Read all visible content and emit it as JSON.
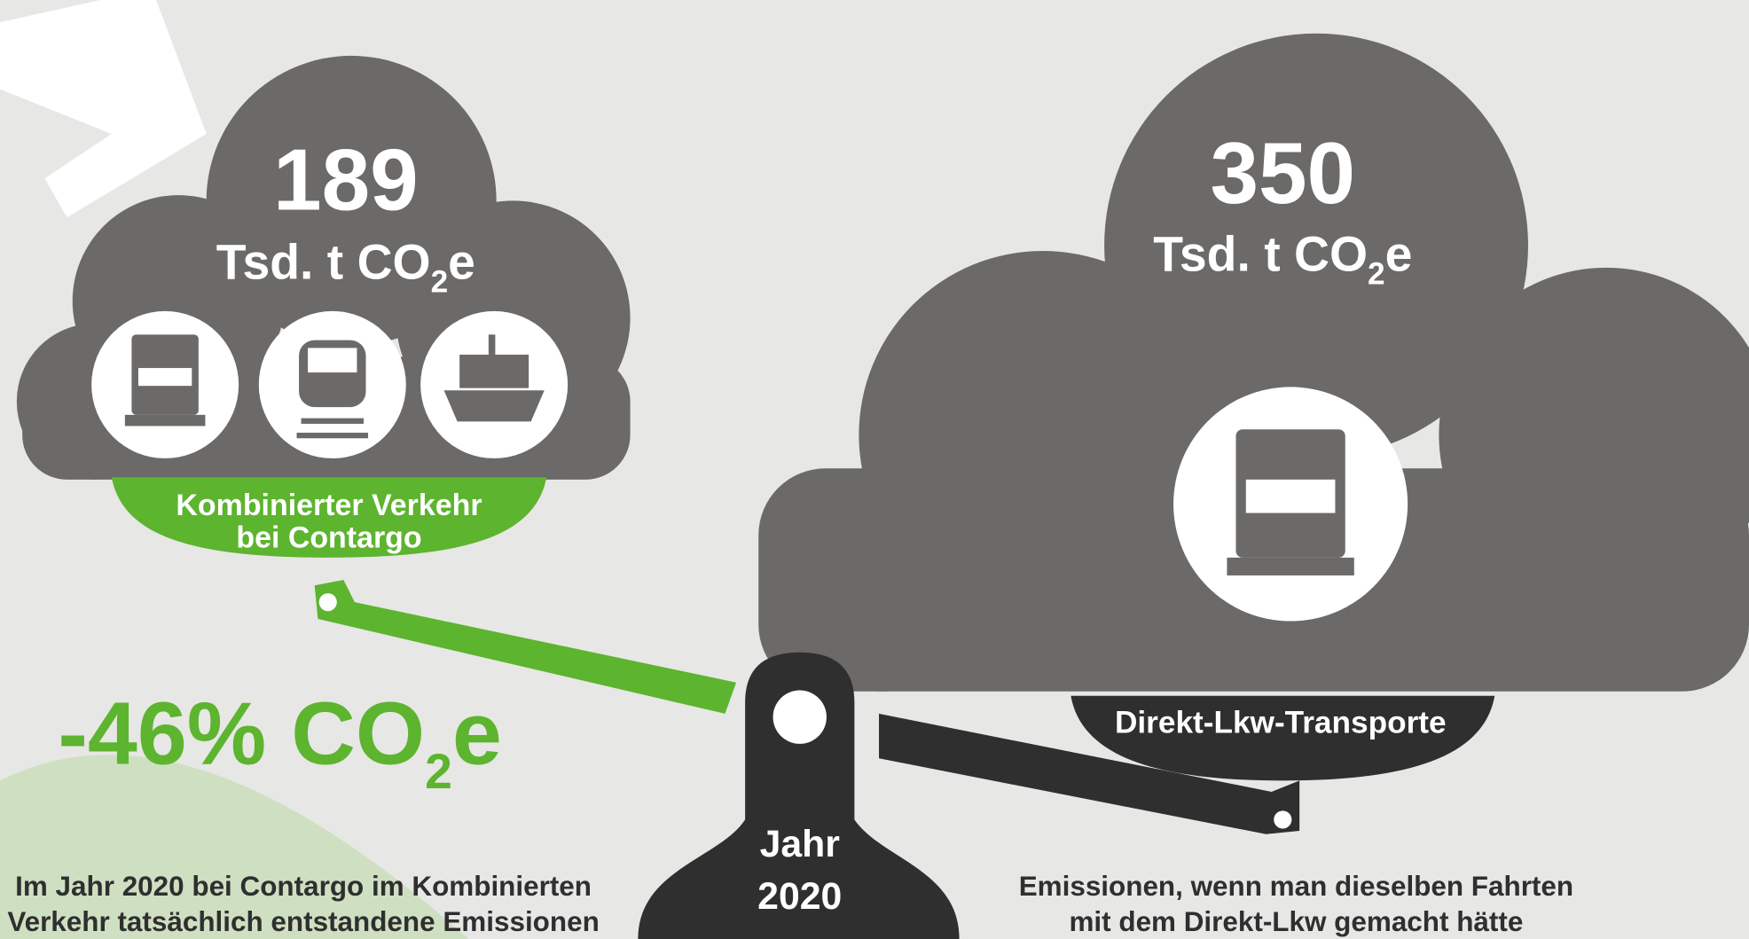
{
  "left": {
    "value": "189",
    "unit": {
      "main": "Tsd. t CO",
      "sub": "2",
      "end": "e"
    },
    "label": [
      "Kombinierter Verkehr",
      "bei Contargo"
    ],
    "caption": [
      "Im Jahr 2020 bei Contargo im Kombinierten",
      "Verkehr tatsächlich entstandene Emissionen"
    ]
  },
  "right": {
    "value": "350",
    "unit": {
      "main": "Tsd. t CO",
      "sub": "2",
      "end": "e"
    },
    "label": "Direkt-Lkw-Transporte",
    "caption": [
      "Emissionen, wenn man dieselben Fahrten",
      "mit dem Direkt-Lkw gemacht hätte"
    ]
  },
  "reduction": {
    "main": "-46% CO",
    "sub": "2",
    "end": "e"
  },
  "pivot": [
    "Jahr",
    "2020"
  ]
}
